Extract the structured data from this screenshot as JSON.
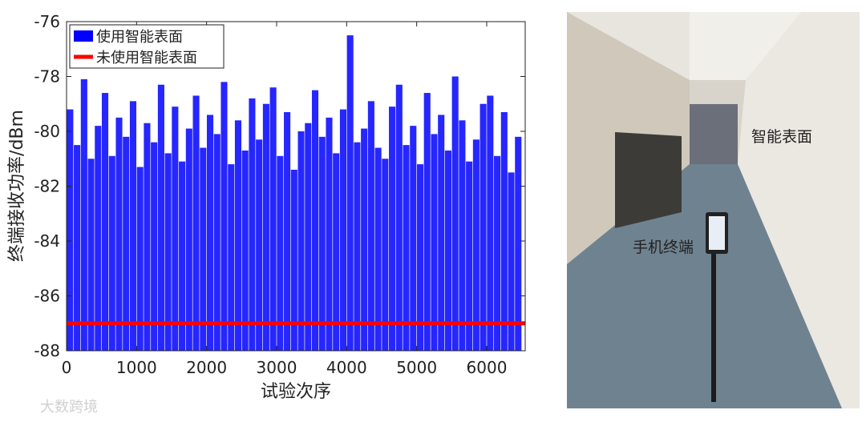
{
  "chart_data": {
    "type": "bar",
    "x_label": "试验次序",
    "y_label": "终端接收功率/dBm",
    "xlim": [
      0,
      6550
    ],
    "xticks": [
      0,
      1000,
      2000,
      3000,
      4000,
      5000,
      6000
    ],
    "ylim": [
      -88,
      -76
    ],
    "yticks": [
      -88,
      -86,
      -84,
      -82,
      -80,
      -78,
      -76
    ],
    "legend": "upper left",
    "series": [
      {
        "name": "使用智能表面",
        "type": "bar",
        "color": "#0000ff",
        "x": [
          50,
          150,
          250,
          350,
          450,
          550,
          650,
          750,
          850,
          950,
          1050,
          1150,
          1250,
          1350,
          1450,
          1550,
          1650,
          1750,
          1850,
          1950,
          2050,
          2150,
          2250,
          2350,
          2450,
          2550,
          2650,
          2750,
          2850,
          2950,
          3050,
          3150,
          3250,
          3350,
          3450,
          3550,
          3650,
          3750,
          3850,
          3950,
          4050,
          4150,
          4250,
          4350,
          4450,
          4550,
          4650,
          4750,
          4850,
          4950,
          5050,
          5150,
          5250,
          5350,
          5450,
          5550,
          5650,
          5750,
          5850,
          5950,
          6050,
          6150,
          6250,
          6350,
          6450
        ],
        "values": [
          -79.2,
          -80.5,
          -78.1,
          -81.0,
          -79.8,
          -78.6,
          -80.9,
          -79.5,
          -80.2,
          -78.9,
          -81.3,
          -79.7,
          -80.4,
          -78.3,
          -80.8,
          -79.1,
          -81.1,
          -79.9,
          -78.7,
          -80.6,
          -79.4,
          -80.1,
          -78.2,
          -81.2,
          -79.6,
          -80.7,
          -78.8,
          -80.3,
          -79.0,
          -78.4,
          -80.9,
          -79.3,
          -81.4,
          -80.0,
          -79.7,
          -78.5,
          -80.2,
          -79.5,
          -80.8,
          -79.2,
          -76.5,
          -80.4,
          -79.9,
          -78.9,
          -80.6,
          -81.0,
          -79.1,
          -78.3,
          -80.5,
          -79.8,
          -81.2,
          -78.6,
          -80.1,
          -79.4,
          -80.7,
          -78.0,
          -79.6,
          -81.1,
          -80.3,
          -79.0,
          -78.7,
          -80.9,
          -79.3,
          -81.5,
          -80.2
        ]
      },
      {
        "name": "未使用智能表面",
        "type": "line",
        "color": "#ff0000",
        "x": [
          0,
          6550
        ],
        "values": [
          -87,
          -87
        ]
      }
    ]
  },
  "photo": {
    "labels": [
      "智能表面",
      "手机终端"
    ]
  },
  "watermark": "大数跨境"
}
